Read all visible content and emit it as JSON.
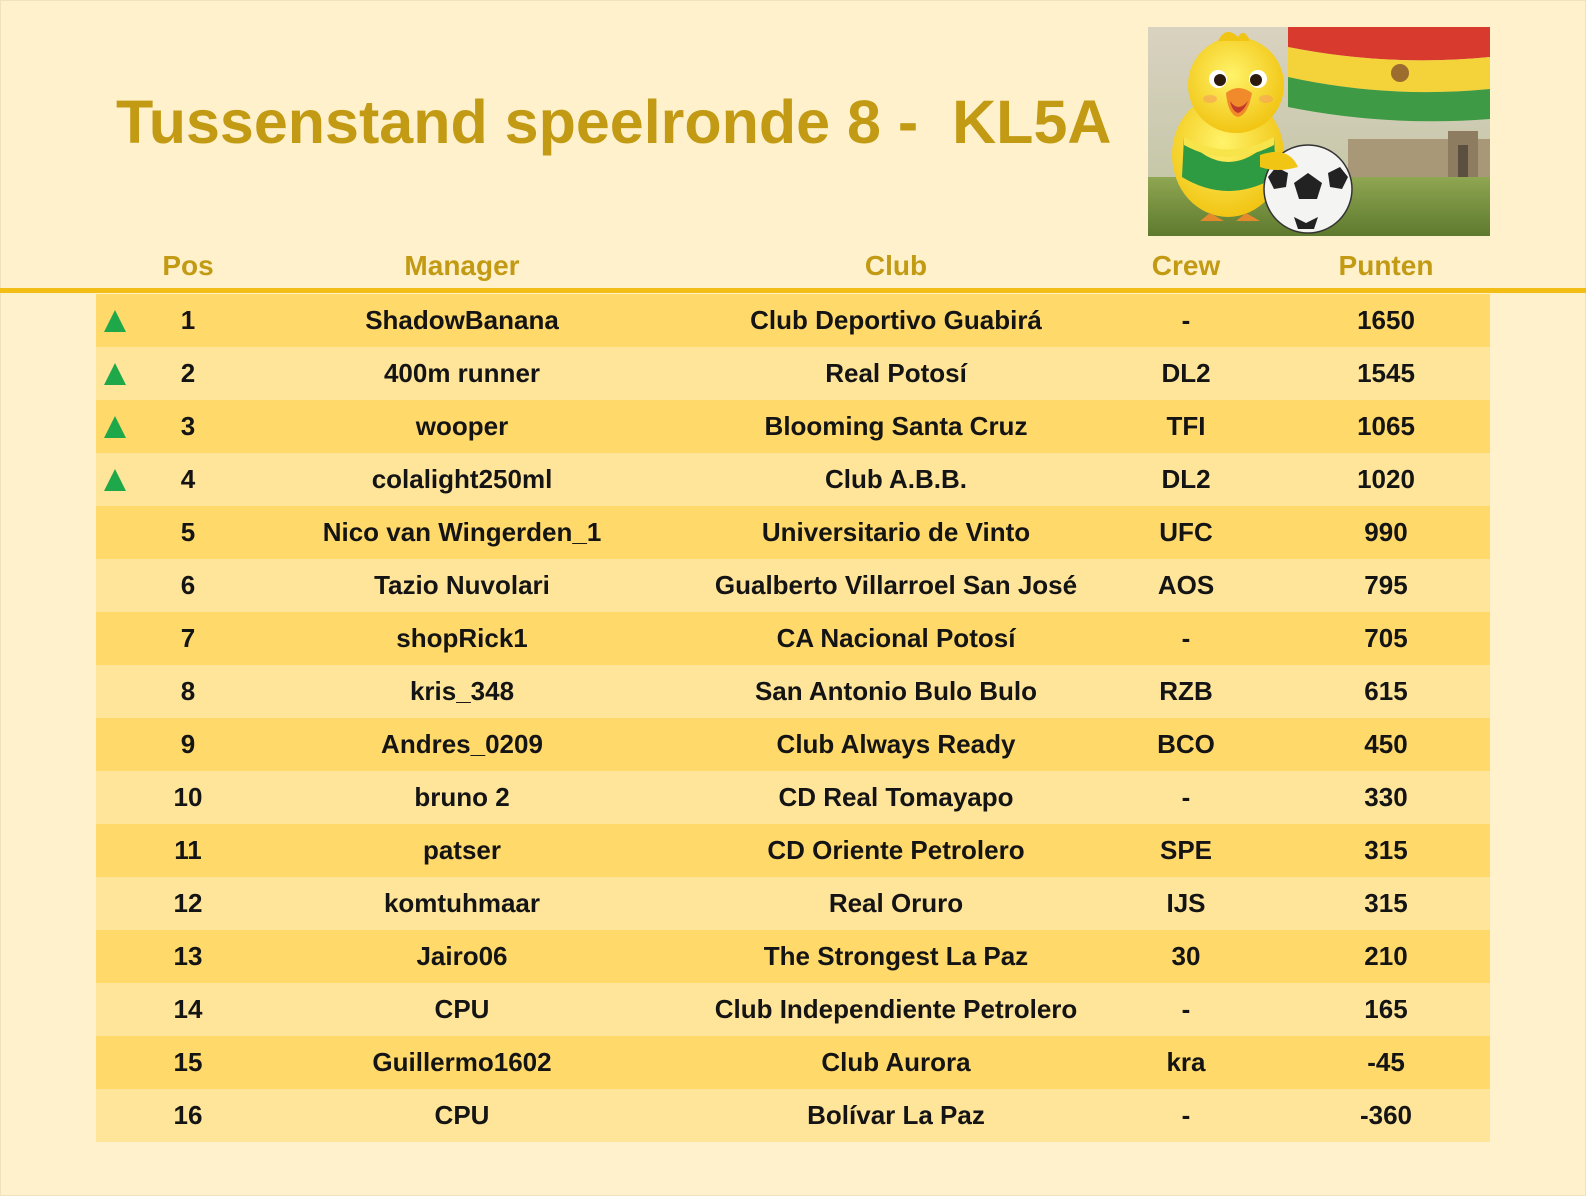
{
  "title": "Tussenstand speelronde 8 -  KL5A",
  "colors": {
    "background": "#FFF1CB",
    "title": "#C29A14",
    "rule": "#F2BE16",
    "row_odd": "#FFD96A",
    "row_even": "#FFE59A",
    "arrow_up": "#1FA84A"
  },
  "illustration": "yellow-bird-mascot-with-soccer-ball-and-bolivian-flag",
  "columns": {
    "pos": "Pos",
    "manager": "Manager",
    "club": "Club",
    "crew": "Crew",
    "punten": "Punten"
  },
  "rows": [
    {
      "trend": "up",
      "pos": "1",
      "manager": "ShadowBanana",
      "club": "Club Deportivo Guabirá",
      "crew": "-",
      "punten": "1650"
    },
    {
      "trend": "up",
      "pos": "2",
      "manager": "400m runner",
      "club": "Real Potosí",
      "crew": "DL2",
      "punten": "1545"
    },
    {
      "trend": "up",
      "pos": "3",
      "manager": "wooper",
      "club": "Blooming Santa Cruz",
      "crew": "TFI",
      "punten": "1065"
    },
    {
      "trend": "up",
      "pos": "4",
      "manager": "colalight250ml",
      "club": "Club A.B.B.",
      "crew": "DL2",
      "punten": "1020"
    },
    {
      "trend": "",
      "pos": "5",
      "manager": "Nico van Wingerden_1",
      "club": "Universitario de Vinto",
      "crew": "UFC",
      "punten": "990"
    },
    {
      "trend": "",
      "pos": "6",
      "manager": "Tazio Nuvolari",
      "club": "Gualberto Villarroel San José",
      "crew": "AOS",
      "punten": "795"
    },
    {
      "trend": "",
      "pos": "7",
      "manager": "shopRick1",
      "club": "CA Nacional Potosí",
      "crew": "-",
      "punten": "705"
    },
    {
      "trend": "",
      "pos": "8",
      "manager": "kris_348",
      "club": "San Antonio Bulo Bulo",
      "crew": "RZB",
      "punten": "615"
    },
    {
      "trend": "",
      "pos": "9",
      "manager": "Andres_0209",
      "club": "Club Always Ready",
      "crew": "BCO",
      "punten": "450"
    },
    {
      "trend": "",
      "pos": "10",
      "manager": "bruno 2",
      "club": "CD Real Tomayapo",
      "crew": "-",
      "punten": "330"
    },
    {
      "trend": "",
      "pos": "11",
      "manager": "patser",
      "club": "CD Oriente Petrolero",
      "crew": "SPE",
      "punten": "315"
    },
    {
      "trend": "",
      "pos": "12",
      "manager": "komtuhmaar",
      "club": "Real Oruro",
      "crew": "IJS",
      "punten": "315"
    },
    {
      "trend": "",
      "pos": "13",
      "manager": "Jairo06",
      "club": "The Strongest La Paz",
      "crew": "30",
      "punten": "210"
    },
    {
      "trend": "",
      "pos": "14",
      "manager": "CPU",
      "club": "Club Independiente Petrolero",
      "crew": "-",
      "punten": "165"
    },
    {
      "trend": "",
      "pos": "15",
      "manager": "Guillermo1602",
      "club": "Club Aurora",
      "crew": "kra",
      "punten": "-45"
    },
    {
      "trend": "",
      "pos": "16",
      "manager": "CPU",
      "club": "Bolívar La Paz",
      "crew": "-",
      "punten": "-360"
    }
  ]
}
